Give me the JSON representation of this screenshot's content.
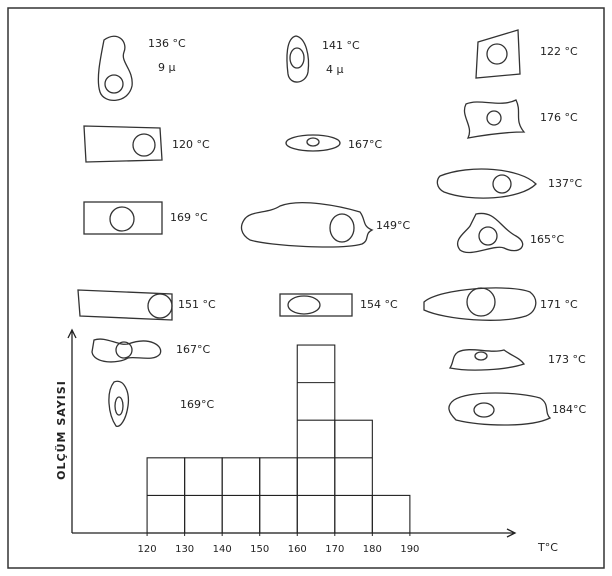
{
  "chart_data": {
    "type": "histogram",
    "x_label": "T°C",
    "y_label": "OLÇÜM SAYISI",
    "bins": [
      120,
      130,
      140,
      150,
      160,
      170,
      180,
      190
    ],
    "values": [
      2,
      2,
      2,
      2,
      5,
      3,
      1
    ],
    "xlim": [
      100,
      218
    ],
    "ylim": [
      0,
      5.4
    ],
    "xticks": [
      120,
      130,
      140,
      150,
      160,
      170,
      180,
      190
    ],
    "color": "#222222",
    "annotations": [
      "136 °C",
      "9 μ",
      "141 °C",
      "4 μ",
      "122 °C",
      "120 °C",
      "167°C",
      "176 °C",
      "137°C",
      "169 °C",
      "149°C",
      "165°C",
      "151 °C",
      "154 °C",
      "171 °C",
      "167°C",
      "173 °C",
      "169°C",
      "184°C"
    ]
  }
}
